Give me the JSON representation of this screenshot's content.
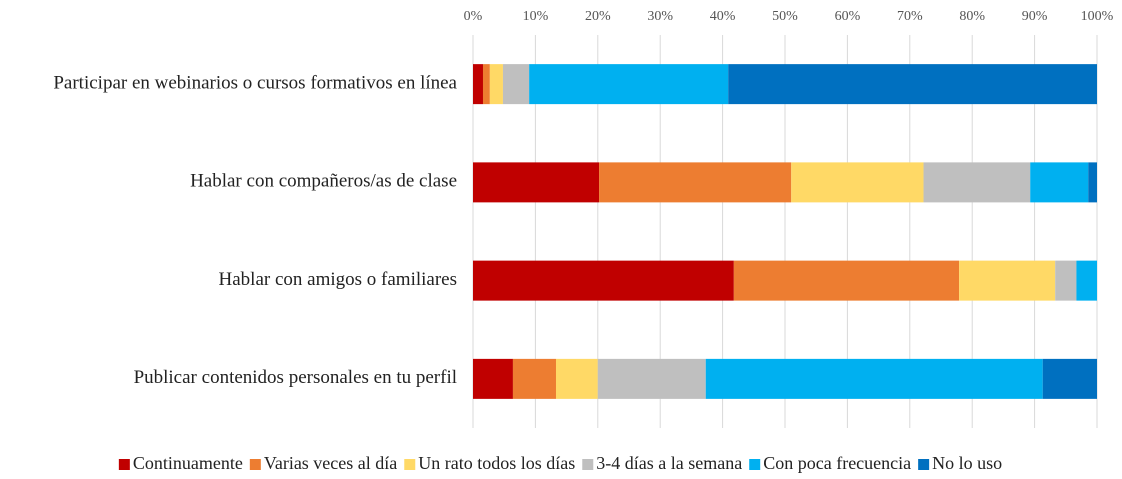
{
  "chart_data": {
    "type": "stacked_barh",
    "categories": [
      "Participar en webinarios o cursos formativos en línea",
      "Hablar con compañeros/as de clase",
      "Hablar con amigos o familiares",
      "Publicar contenidos personales en tu perfil"
    ],
    "series": [
      {
        "name": "Continuamente",
        "color": "#c00000",
        "values": [
          1.6,
          20.2,
          41.8,
          6.4
        ]
      },
      {
        "name": "Varias veces al día",
        "color": "#ed7d31",
        "values": [
          1.1,
          30.8,
          36.1,
          6.9
        ]
      },
      {
        "name": "Un rato todos los días",
        "color": "#ffd966",
        "values": [
          2.1,
          21.2,
          15.4,
          6.7
        ]
      },
      {
        "name": "3-4 días a la semana",
        "color": "#bfbfbf",
        "values": [
          4.2,
          17.1,
          3.4,
          17.3
        ]
      },
      {
        "name": "Con poca frecuencia",
        "color": "#00b0f0",
        "values": [
          31.9,
          9.3,
          3.3,
          54.0
        ]
      },
      {
        "name": "No lo uso",
        "color": "#0070c0",
        "values": [
          59.1,
          1.4,
          0,
          8.7
        ]
      }
    ],
    "xlim": [
      0,
      100
    ],
    "xticks": [
      {
        "value": 0,
        "label": "0%"
      },
      {
        "value": 10,
        "label": "10%"
      },
      {
        "value": 20,
        "label": "20%"
      },
      {
        "value": 30,
        "label": "30%"
      },
      {
        "value": 40,
        "label": "40%"
      },
      {
        "value": 50,
        "label": "50%"
      },
      {
        "value": 60,
        "label": "60%"
      },
      {
        "value": 70,
        "label": "70%"
      },
      {
        "value": 80,
        "label": "80%"
      },
      {
        "value": 90,
        "label": "90%"
      },
      {
        "value": 100,
        "label": "100%"
      }
    ],
    "grid": true,
    "legend": "bottom"
  }
}
